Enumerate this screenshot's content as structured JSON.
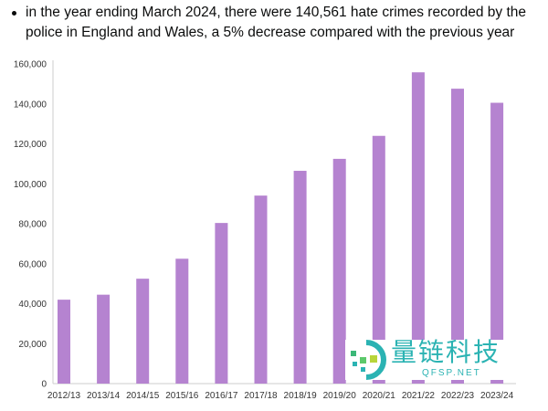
{
  "text": {
    "bullet": "in the year ending March 2024, there were 140,561 hate crimes recorded by the police in England and Wales, a 5% decrease compared with the previous year"
  },
  "watermark": {
    "title": "量链科技",
    "url": "QFSP.NET"
  },
  "chart_data": {
    "type": "bar",
    "title": "",
    "xlabel": "",
    "ylabel": "",
    "categories": [
      "2012/13",
      "2013/14",
      "2014/15",
      "2015/16",
      "2016/17",
      "2017/18",
      "2018/19",
      "2019/20",
      "2020/21",
      "2021/22",
      "2022/23",
      "2023/24"
    ],
    "values": [
      42000,
      44500,
      52500,
      62500,
      80400,
      94100,
      106500,
      112500,
      124000,
      155800,
      147600,
      140561
    ],
    "ylim": [
      0,
      160000
    ],
    "yticks": [
      0,
      20000,
      40000,
      60000,
      80000,
      100000,
      120000,
      140000,
      160000
    ],
    "ytick_labels": [
      "0",
      "20,000",
      "40,000",
      "60,000",
      "80,000",
      "100,000",
      "120,000",
      "140,000",
      "160,000"
    ],
    "grid": false,
    "bar_color": "#b583d0"
  }
}
